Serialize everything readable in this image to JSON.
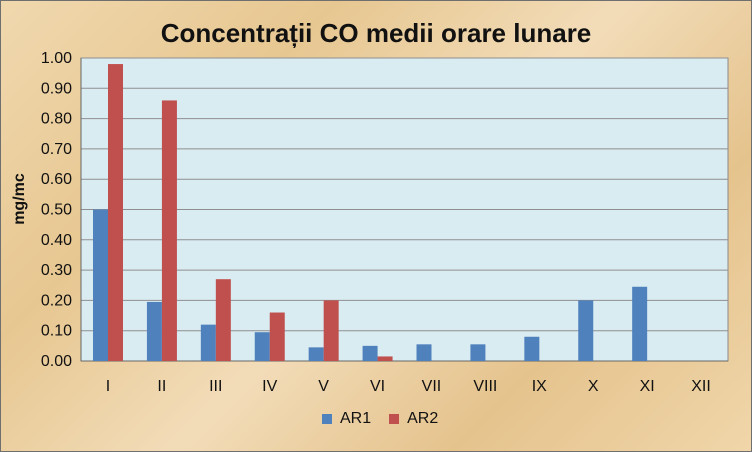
{
  "chart_data": {
    "type": "bar",
    "title": "Concentrații CO medii orare lunare",
    "xlabel": "",
    "ylabel": "mg/mc",
    "categories": [
      "I",
      "II",
      "III",
      "IV",
      "V",
      "VI",
      "VII",
      "VIII",
      "IX",
      "X",
      "XI",
      "XII"
    ],
    "series": [
      {
        "name": "AR1",
        "color": "#4f81bd",
        "values": [
          0.5,
          0.195,
          0.12,
          0.095,
          0.045,
          0.05,
          0.055,
          0.055,
          0.08,
          0.2,
          0.245,
          null
        ]
      },
      {
        "name": "AR2",
        "color": "#c0504d",
        "values": [
          0.98,
          0.86,
          0.27,
          0.16,
          0.2,
          0.015,
          null,
          null,
          null,
          null,
          null,
          null
        ]
      }
    ],
    "ylim": [
      0,
      1.0
    ],
    "yticks": [
      0.0,
      0.1,
      0.2,
      0.3,
      0.4,
      0.5,
      0.6,
      0.7,
      0.8,
      0.9,
      1.0
    ],
    "ytick_labels": [
      "0.00",
      "0.10",
      "0.20",
      "0.30",
      "0.40",
      "0.50",
      "0.60",
      "0.70",
      "0.80",
      "0.90",
      "1.00"
    ],
    "grid": true,
    "legend_position": "bottom"
  }
}
